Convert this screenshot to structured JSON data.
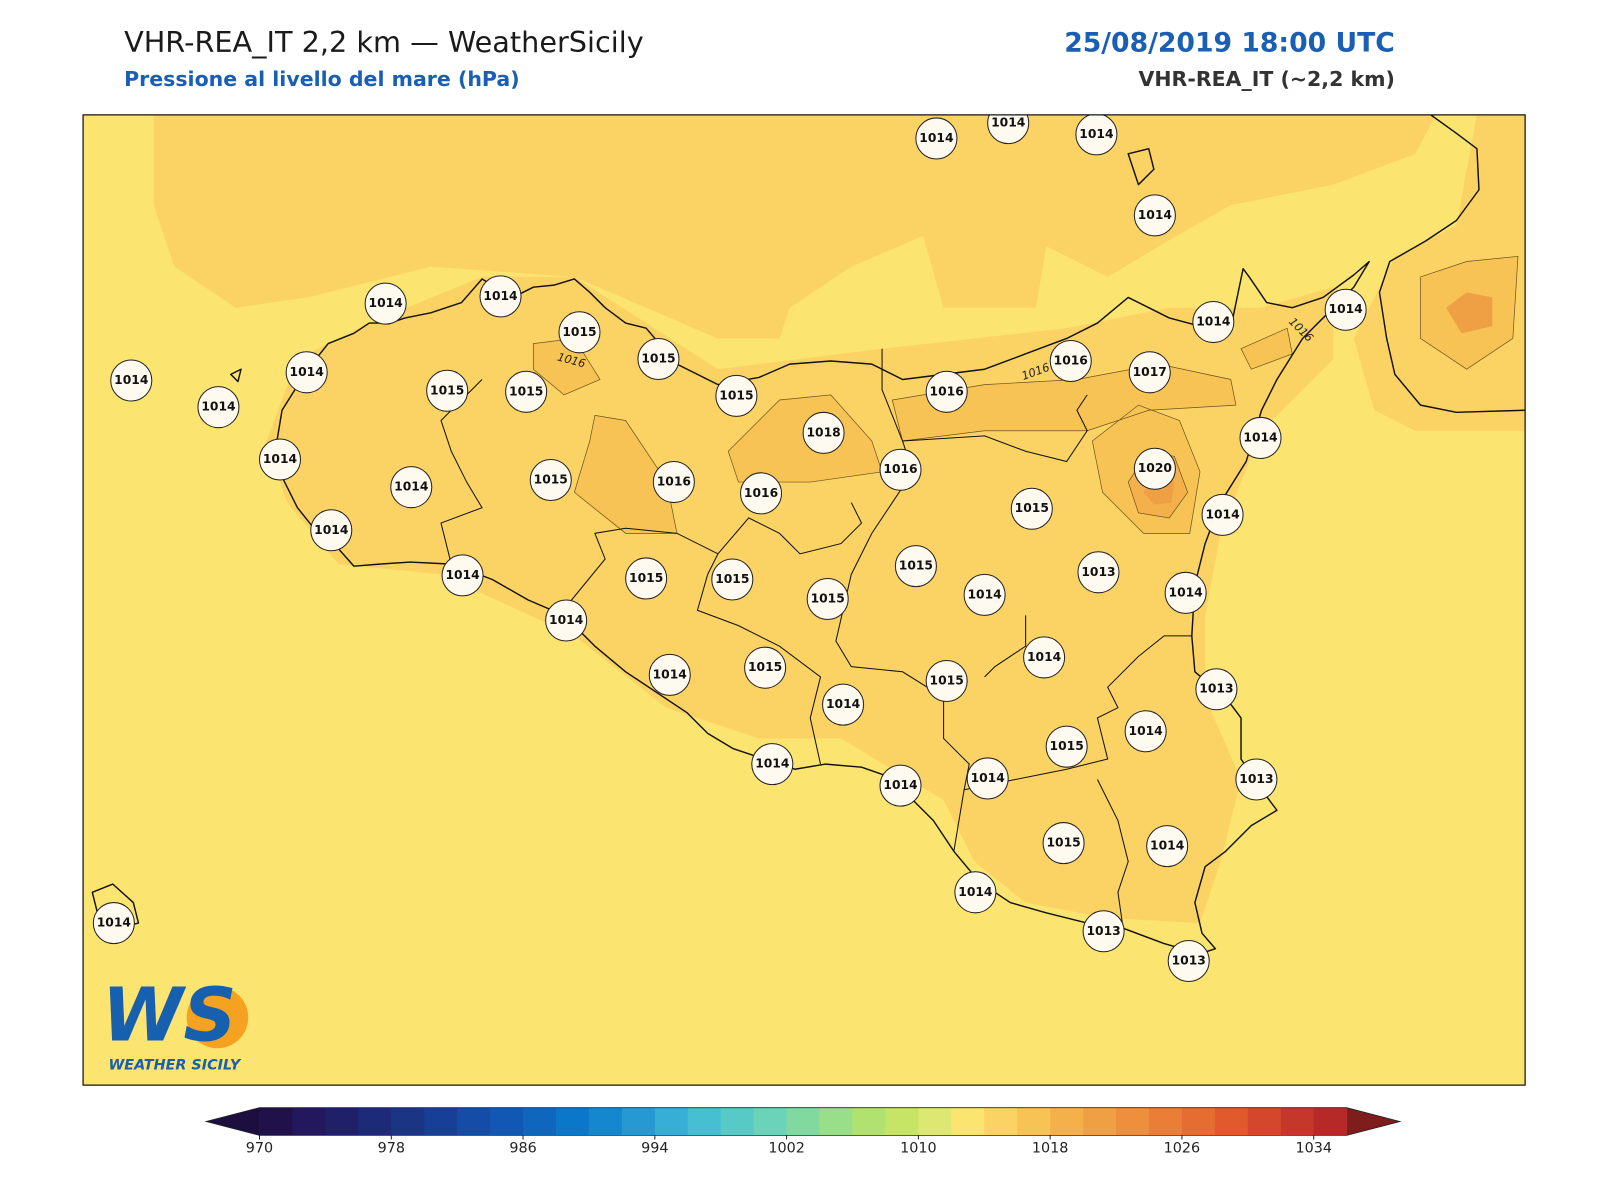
{
  "header": {
    "title": "VHR-REA_IT 2,2 km — WeatherSicily",
    "subtitle": "Pressione al livello del mare (hPa)",
    "date": "25/08/2019 18:00 UTC",
    "model": "VHR-REA_IT (~2,2 km)"
  },
  "stations": [
    1014,
    1014,
    1014,
    1014,
    1014,
    1014,
    1015,
    1015,
    1014,
    1014,
    1014,
    1015,
    1015,
    1015,
    1014,
    1014,
    1016,
    1017,
    1016,
    1018,
    1014,
    1014,
    1015,
    1016,
    1016,
    1016,
    1020,
    1014,
    1014,
    1015,
    1014,
    1014,
    1015,
    1015,
    1015,
    1015,
    1014,
    1013,
    1014,
    1014,
    1014,
    1015,
    1014,
    1015,
    1014,
    1013,
    1015,
    1014,
    1014,
    1014,
    1014,
    1013,
    1015,
    1014,
    1014,
    1014,
    1013,
    1013
  ],
  "contour_labels": [
    "1016",
    "1016",
    "1016"
  ],
  "logo": {
    "mark": "WS",
    "name": "WEATHER SICILY"
  },
  "colorbar": {
    "range": [
      970,
      1036
    ],
    "ticks": [
      970,
      978,
      986,
      994,
      1002,
      1010,
      1018,
      1026,
      1034
    ],
    "colors": [
      "#20114b",
      "#23175e",
      "#1f2068",
      "#1d2a77",
      "#1b3585",
      "#173f96",
      "#144ca6",
      "#1157b4",
      "#0f66bd",
      "#0b77c8",
      "#1487cf",
      "#2699d2",
      "#37aed6",
      "#47bfd2",
      "#57cac8",
      "#6bd3b8",
      "#82d9a0",
      "#99de88",
      "#b1e270",
      "#c6e466",
      "#dde873",
      "#fbe46f",
      "#fbd264",
      "#f7c355",
      "#f4b14b",
      "#f0a044",
      "#ed8f3d",
      "#ea7e37",
      "#e66d31",
      "#e05a2d",
      "#d4472c",
      "#c5362b",
      "#b52a28"
    ],
    "under_color": "#1c0f3f",
    "over_color": "#7f1d1d"
  }
}
